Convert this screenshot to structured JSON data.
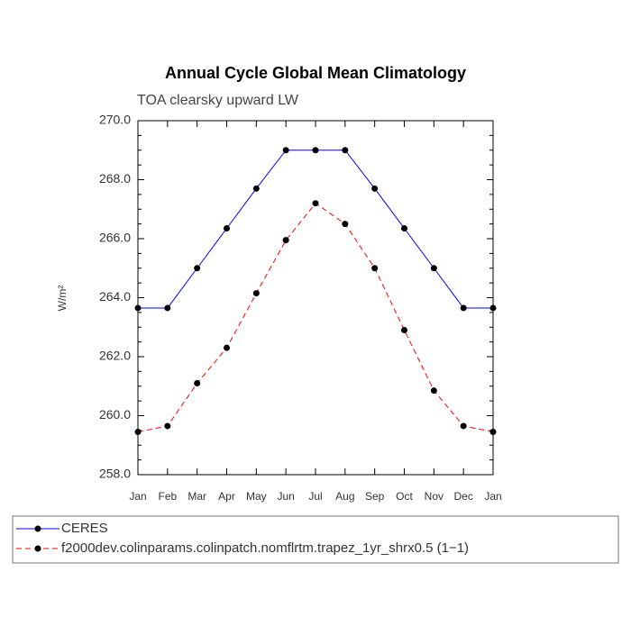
{
  "chart_data": {
    "type": "line",
    "title": "Annual Cycle Global Mean Climatology",
    "subtitle": "TOA clearsky upward LW",
    "y_label": "W/m²",
    "categories": [
      "Jan",
      "Feb",
      "Mar",
      "Apr",
      "May",
      "Jun",
      "Jul",
      "Aug",
      "Sep",
      "Oct",
      "Nov",
      "Dec",
      "Jan"
    ],
    "series": [
      {
        "name": "CERES",
        "color": "#0000ff",
        "dashed": false,
        "values": [
          263.65,
          263.65,
          265.0,
          266.35,
          267.7,
          269.0,
          269.0,
          269.0,
          267.7,
          266.35,
          265.0,
          263.65,
          263.65
        ]
      },
      {
        "name": "f2000dev.colinparams.colinpatch.nomflrtm.trapez_1yr_shrx0.5 (1−1)",
        "color": "#ff0000",
        "dashed": true,
        "values": [
          259.45,
          259.65,
          261.1,
          262.3,
          264.15,
          265.95,
          267.2,
          266.5,
          265.0,
          262.9,
          260.85,
          259.65,
          259.45
        ]
      }
    ],
    "ylim": [
      258,
      270
    ],
    "yticks": [
      {
        "value": 258,
        "label": "258.0"
      },
      {
        "value": 260,
        "label": "260.0"
      },
      {
        "value": 262,
        "label": "262.0"
      },
      {
        "value": 264,
        "label": "264.0"
      },
      {
        "value": 266,
        "label": "266.0"
      },
      {
        "value": 268,
        "label": "268.0"
      },
      {
        "value": 270,
        "label": "270.0"
      }
    ]
  }
}
